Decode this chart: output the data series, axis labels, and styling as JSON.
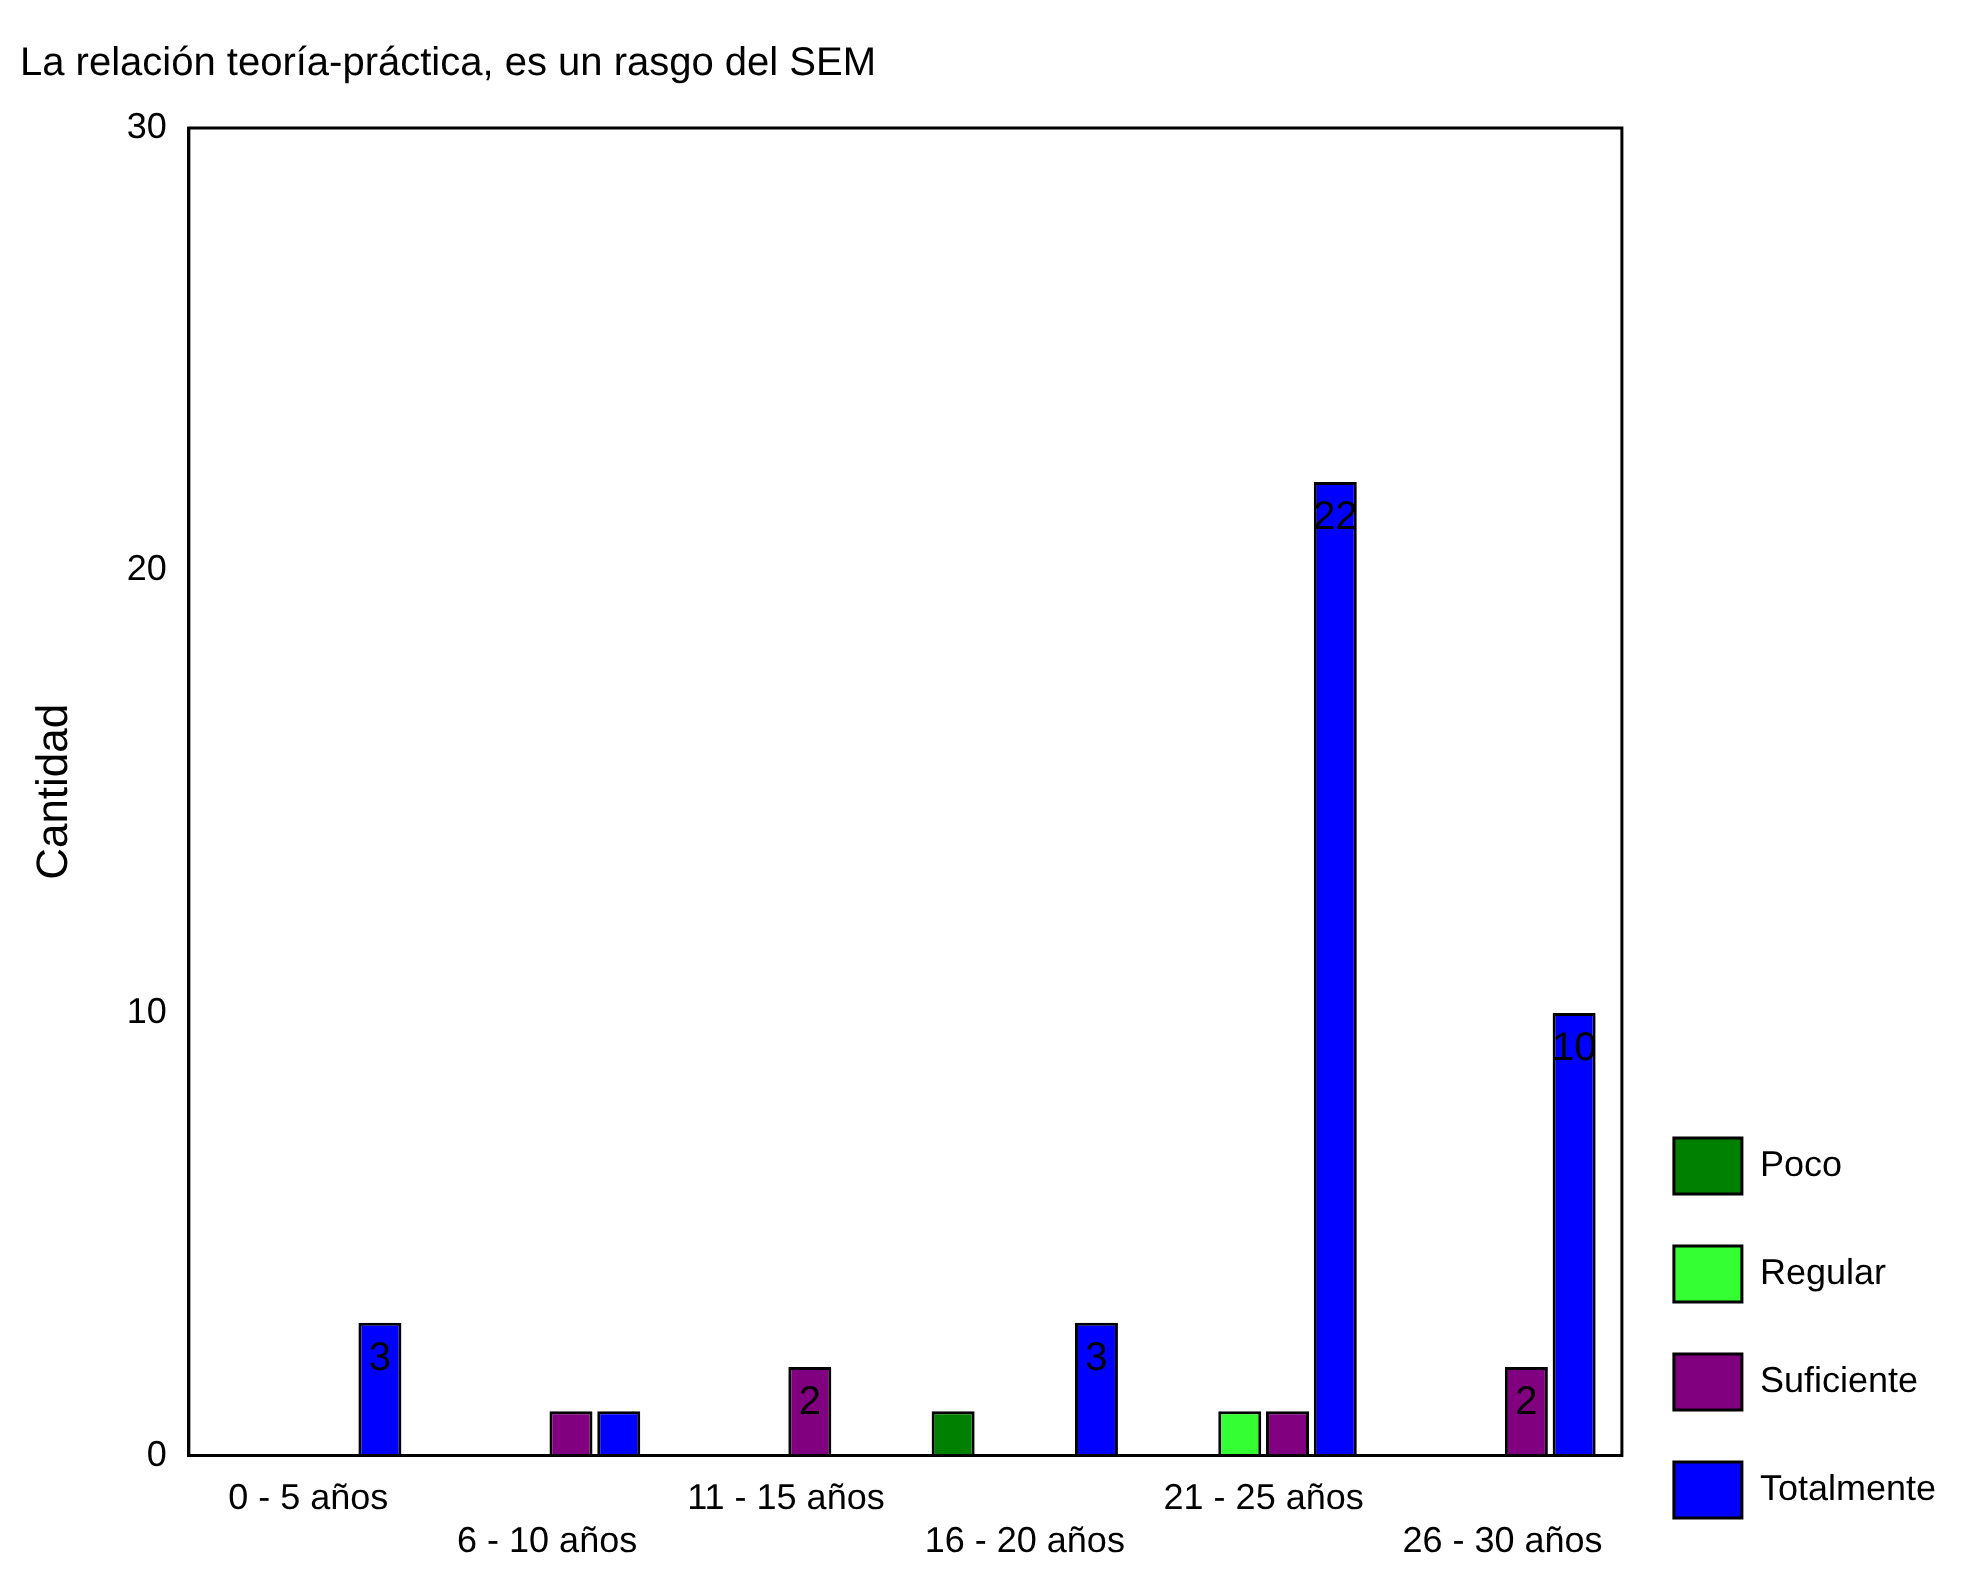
{
  "chart_data": {
    "type": "bar",
    "title": "La relación teoría-práctica, es un rasgo del SEM",
    "ylabel": "Cantidad",
    "categories": [
      "0 - 5 años",
      "6 - 10 años",
      "11 - 15 años",
      "16 - 20 años",
      "21 - 25 años",
      "26 - 30 años"
    ],
    "series": [
      {
        "name": "Poco",
        "color": "#008000",
        "values": [
          null,
          null,
          null,
          1,
          null,
          null
        ],
        "value_labels": [
          null,
          null,
          null,
          null,
          null,
          null
        ]
      },
      {
        "name": "Regular",
        "color": "#33ff33",
        "values": [
          null,
          null,
          null,
          null,
          1,
          null
        ],
        "value_labels": [
          null,
          null,
          null,
          null,
          null,
          null
        ]
      },
      {
        "name": "Suficiente",
        "color": "#800080",
        "values": [
          null,
          1,
          2,
          null,
          1,
          2
        ],
        "value_labels": [
          null,
          null,
          "2",
          null,
          null,
          "2"
        ]
      },
      {
        "name": "Totalmente",
        "color": "#0000ff",
        "values": [
          3,
          1,
          null,
          3,
          22,
          10
        ],
        "value_labels": [
          "3",
          null,
          null,
          "3",
          "22",
          "10"
        ]
      }
    ],
    "ylim": [
      0,
      30
    ],
    "yticks": [
      0,
      10,
      20,
      30
    ],
    "grid": false,
    "legend": "right"
  }
}
